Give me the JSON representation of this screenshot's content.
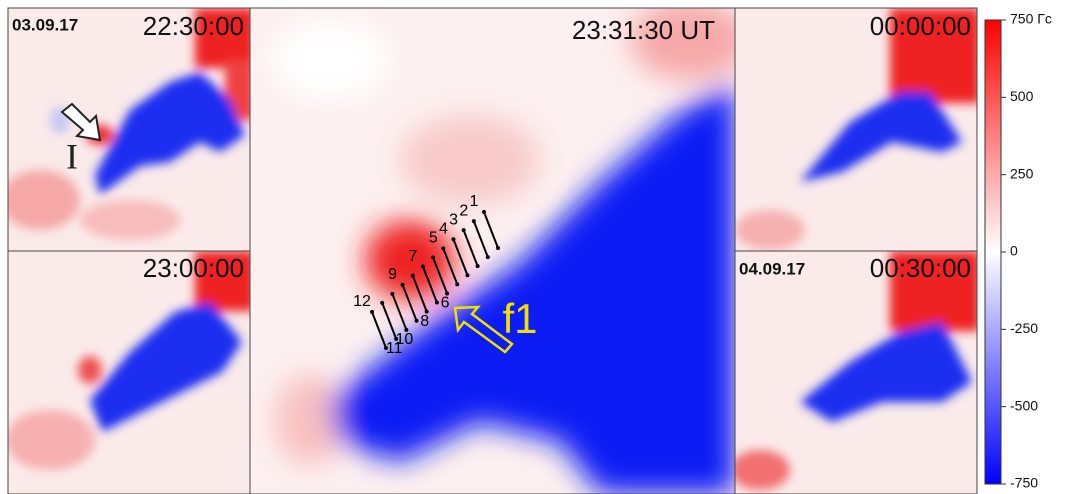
{
  "panels": [
    {
      "date": "03.09.17",
      "time": "22:30:00",
      "annotation": "I"
    },
    {
      "time": "23:00:00"
    },
    {
      "time": "23:31:30 UT",
      "annotation": "f1",
      "fiducials": [
        "1",
        "2",
        "3",
        "4",
        "5",
        "6",
        "7",
        "8",
        "9",
        "10",
        "11",
        "12"
      ]
    },
    {
      "time": "00:00:00"
    },
    {
      "date": "04.09.17",
      "time": "00:30:00"
    }
  ],
  "colorbar": {
    "lim": [
      -750,
      750
    ],
    "ticks": [
      {
        "value": 750,
        "label": "750 Гс"
      },
      500,
      250,
      0,
      -250,
      -500,
      -750
    ],
    "colors": [
      "#0000ff",
      "#ffffff",
      "#ff0000"
    ]
  }
}
